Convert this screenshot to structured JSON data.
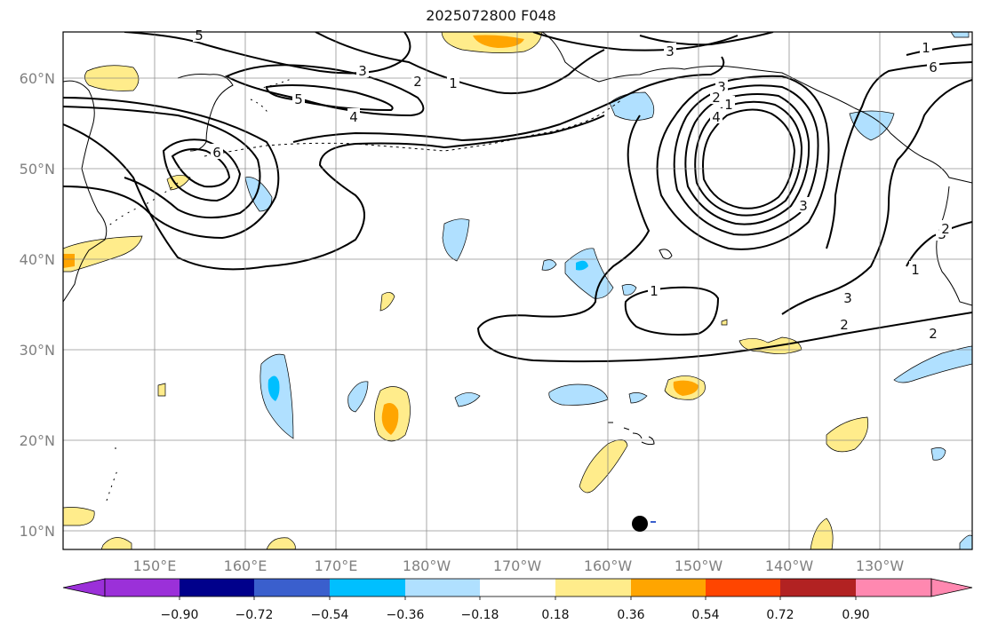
{
  "title": "2025072800 F048",
  "map": {
    "lat_ticks": [
      "10°N",
      "20°N",
      "30°N",
      "40°N",
      "50°N",
      "60°N"
    ],
    "lon_ticks": [
      "150°E",
      "160°E",
      "170°E",
      "180°W",
      "170°W",
      "160°W",
      "150°W",
      "140°W",
      "130°W"
    ],
    "grid": true
  },
  "colorbar": {
    "ticks": [
      "−0.90",
      "−0.72",
      "−0.54",
      "−0.36",
      "−0.18",
      "0.18",
      "0.36",
      "0.54",
      "0.72",
      "0.90"
    ],
    "colors": [
      "#9b30d9",
      "#00008b",
      "#3a5fcd",
      "#00bfff",
      "#b0e0ff",
      "#ffffff",
      "#ffec8b",
      "#ffa500",
      "#ff4500",
      "#b22222",
      "#ff88b0"
    ],
    "extend": "both"
  },
  "contours": {
    "line_color": "#000000",
    "labels": [
      "5",
      "3",
      "2",
      "1",
      "5",
      "4",
      "6",
      "3",
      "4",
      "1",
      "2",
      "1",
      "6",
      "1",
      "3",
      "2",
      "2",
      "1",
      "3",
      "3",
      "2",
      "3"
    ]
  },
  "marker": {
    "type": "dot",
    "color": "#000000"
  }
}
